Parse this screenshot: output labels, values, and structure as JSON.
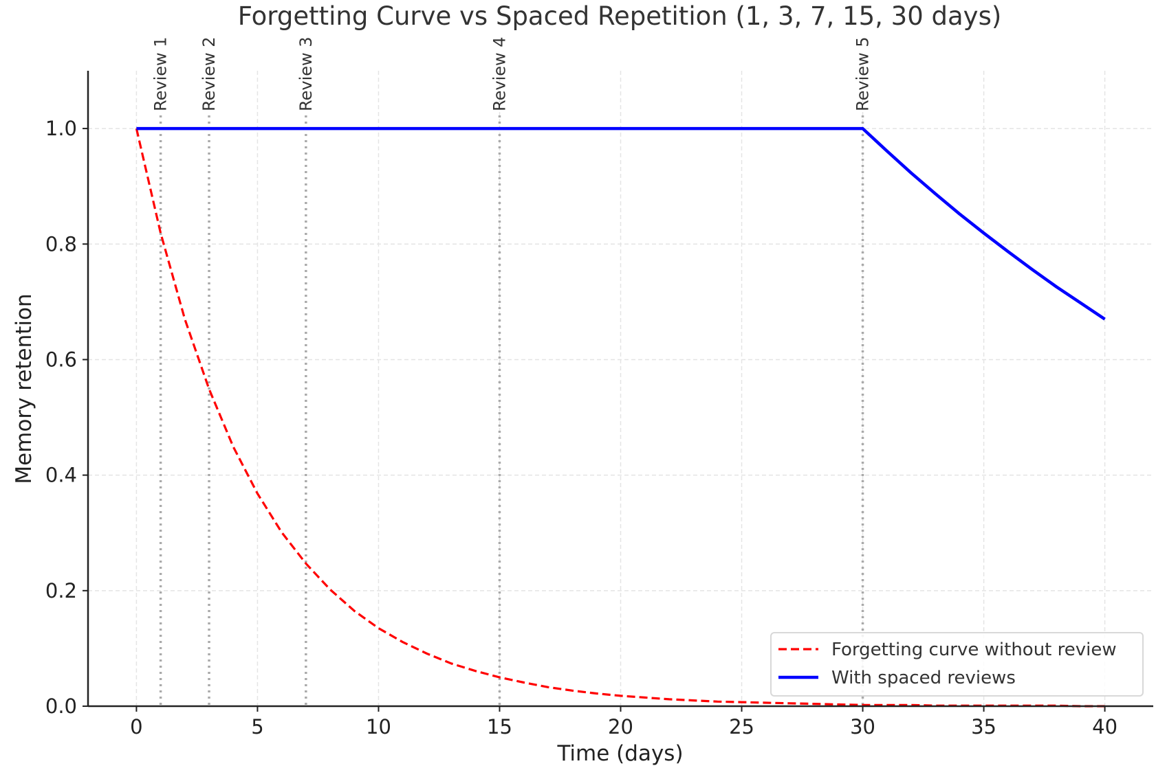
{
  "chart_data": {
    "type": "line",
    "title": "Forgetting Curve vs Spaced Repetition (1, 3, 7, 15, 30 days)",
    "xlabel": "Time (days)",
    "ylabel": "Memory retention",
    "xlim": [
      -2,
      42
    ],
    "ylim": [
      0,
      1.1
    ],
    "xticks": [
      0,
      5,
      10,
      15,
      20,
      25,
      30,
      35,
      40
    ],
    "xtick_labels": [
      "0",
      "5",
      "10",
      "15",
      "20",
      "25",
      "30",
      "35",
      "40"
    ],
    "yticks": [
      0,
      0.2,
      0.4,
      0.6,
      0.8,
      1.0
    ],
    "ytick_labels": [
      "0.0",
      "0.2",
      "0.4",
      "0.6",
      "0.8",
      "1.0"
    ],
    "grid": true,
    "legend_position": "bottom-right",
    "x": [
      0,
      1,
      2,
      3,
      4,
      5,
      6,
      7,
      8,
      9,
      10,
      11,
      12,
      13,
      14,
      15,
      16,
      17,
      18,
      19,
      20,
      21,
      22,
      23,
      24,
      25,
      26,
      27,
      28,
      29,
      30,
      31,
      32,
      33,
      34,
      35,
      36,
      37,
      38,
      39,
      40
    ],
    "series": [
      {
        "name": "Forgetting curve without review",
        "color": "#ff0000",
        "style": "dashed",
        "values": [
          1,
          0.819,
          0.67,
          0.549,
          0.449,
          0.368,
          0.301,
          0.247,
          0.202,
          0.165,
          0.135,
          0.111,
          0.091,
          0.074,
          0.061,
          0.05,
          0.041,
          0.033,
          0.027,
          0.022,
          0.018,
          0.015,
          0.012,
          0.01,
          0.008,
          0.007,
          0.006,
          0.005,
          0.004,
          0.003,
          0.002,
          0.002,
          0.002,
          0.001,
          0.001,
          0.001,
          0.001,
          0.001,
          0.001,
          0.0,
          0.0
        ]
      },
      {
        "name": "With spaced reviews",
        "color": "#0000ff",
        "style": "solid",
        "values": [
          1,
          1,
          1,
          1,
          1,
          1,
          1,
          1,
          1,
          1,
          1,
          1,
          1,
          1,
          1,
          1,
          1,
          1,
          1,
          1,
          1,
          1,
          1,
          1,
          1,
          1,
          1,
          1,
          1,
          1,
          1,
          0.961,
          0.923,
          0.887,
          0.852,
          0.819,
          0.787,
          0.756,
          0.726,
          0.698,
          0.67
        ]
      }
    ],
    "annotations": [
      {
        "x": 1,
        "label": "Review 1"
      },
      {
        "x": 3,
        "label": "Review 2"
      },
      {
        "x": 7,
        "label": "Review 3"
      },
      {
        "x": 15,
        "label": "Review 4"
      },
      {
        "x": 30,
        "label": "Review 5"
      }
    ]
  }
}
